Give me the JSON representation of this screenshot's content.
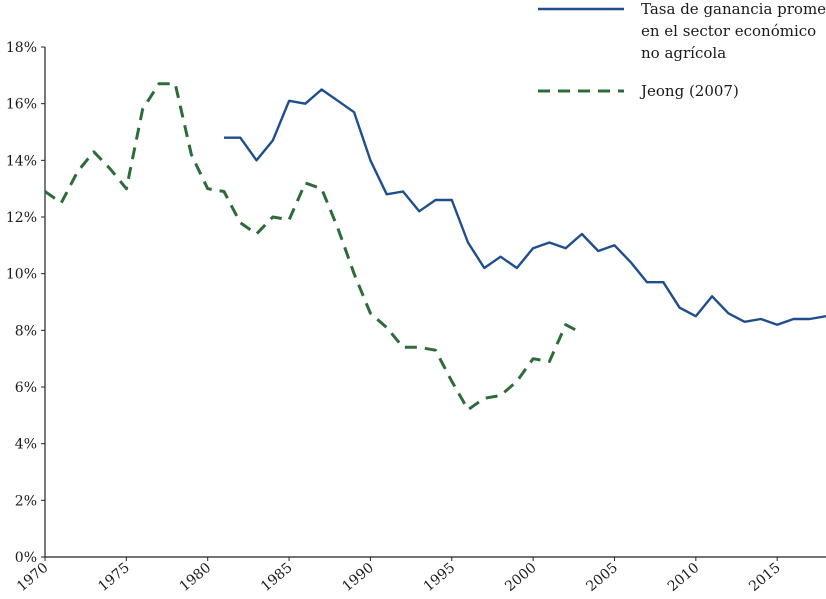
{
  "chart_data": {
    "type": "line",
    "title": "",
    "xlabel": "",
    "ylabel": "",
    "xlim": [
      1970,
      2018
    ],
    "ylim": [
      0,
      18
    ],
    "grid": false,
    "legend_position": "top-right",
    "x_ticks": [
      {
        "value": 1970,
        "label": "1970"
      },
      {
        "value": 1975,
        "label": "1975"
      },
      {
        "value": 1980,
        "label": "1980"
      },
      {
        "value": 1985,
        "label": "1985"
      },
      {
        "value": 1990,
        "label": "1990"
      },
      {
        "value": 1995,
        "label": "1995"
      },
      {
        "value": 2000,
        "label": "2000"
      },
      {
        "value": 2005,
        "label": "2005"
      },
      {
        "value": 2010,
        "label": "2010"
      },
      {
        "value": 2015,
        "label": "2015"
      }
    ],
    "y_ticks": [
      {
        "value": 0,
        "label": "0%"
      },
      {
        "value": 2,
        "label": "2%"
      },
      {
        "value": 4,
        "label": "4%"
      },
      {
        "value": 6,
        "label": "6%"
      },
      {
        "value": 8,
        "label": "8%"
      },
      {
        "value": 10,
        "label": "10%"
      },
      {
        "value": 12,
        "label": "12%"
      },
      {
        "value": 14,
        "label": "14%"
      },
      {
        "value": 16,
        "label": "16%"
      },
      {
        "value": 18,
        "label": "18%"
      }
    ],
    "series": [
      {
        "name_lines": [
          "Tasa de ganancia promedio",
          "en el sector económico",
          "no agrícola"
        ],
        "color": "#1f4e8c",
        "style": "solid",
        "x": [
          1981,
          1982,
          1983,
          1984,
          1985,
          1986,
          1987,
          1988,
          1989,
          1990,
          1991,
          1992,
          1993,
          1994,
          1995,
          1996,
          1997,
          1998,
          1999,
          2000,
          2001,
          2002,
          2003,
          2004,
          2005,
          2006,
          2007,
          2008,
          2009,
          2010,
          2011,
          2012,
          2013,
          2014,
          2015,
          2016,
          2017,
          2018
        ],
        "y": [
          14.8,
          14.8,
          14.0,
          14.7,
          16.1,
          16.0,
          16.5,
          16.1,
          15.7,
          14.0,
          12.8,
          12.9,
          12.2,
          12.6,
          12.6,
          11.1,
          10.2,
          10.6,
          10.2,
          10.9,
          11.1,
          10.9,
          11.4,
          10.8,
          11.0,
          10.4,
          9.7,
          9.7,
          8.8,
          8.5,
          9.2,
          8.6,
          8.3,
          8.4,
          8.2,
          8.4,
          8.4,
          8.5
        ]
      },
      {
        "name": "Jeong (2007)",
        "color": "#2e6b3a",
        "style": "dashed",
        "x": [
          1970,
          1971,
          1972,
          1973,
          1974,
          1975,
          1976,
          1977,
          1978,
          1979,
          1980,
          1981,
          1982,
          1983,
          1984,
          1985,
          1986,
          1987,
          1988,
          1989,
          1990,
          1991,
          1992,
          1993,
          1994,
          1995,
          1996,
          1997,
          1998,
          1999,
          2000,
          2001,
          2002,
          2003
        ],
        "y": [
          12.9,
          12.5,
          13.6,
          14.3,
          13.7,
          13.0,
          15.8,
          16.7,
          16.7,
          14.2,
          13.0,
          12.9,
          11.8,
          11.4,
          12.0,
          11.9,
          13.2,
          13.0,
          11.6,
          10.0,
          8.6,
          8.1,
          7.4,
          7.4,
          7.3,
          6.2,
          5.2,
          5.6,
          5.7,
          6.2,
          7.0,
          6.9,
          8.2,
          7.9
        ]
      }
    ]
  }
}
